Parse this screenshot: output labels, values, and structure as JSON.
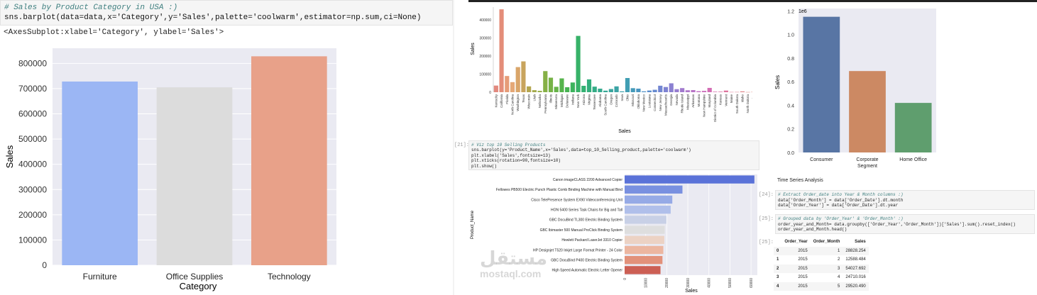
{
  "left_cell": {
    "comment": "# Sales by Product Category in USA :)",
    "code": "sns.barplot(data=data,x='Category',y='Sales',palette='coolwarm',estimator=np.sum,ci=None)",
    "output": "<AxesSubplot:xlabel='Category', ylabel='Sales'>"
  },
  "chart_data": [
    {
      "id": "category",
      "type": "bar",
      "categories": [
        "Furniture",
        "Office Supplies",
        "Technology"
      ],
      "values": [
        728000,
        705000,
        828000
      ],
      "colors": [
        "#9bb6f4",
        "#dcdcdc",
        "#e8a189"
      ],
      "xlabel": "Category",
      "ylabel": "Sales",
      "ylim": [
        0,
        860000
      ],
      "yticks": [
        0,
        100000,
        200000,
        300000,
        400000,
        500000,
        600000,
        700000,
        800000
      ],
      "ytick_labels": [
        "0",
        "100000",
        "200000",
        "300000",
        "400000",
        "500000",
        "600000",
        "700000",
        "800000"
      ],
      "grid": true
    },
    {
      "id": "state",
      "type": "bar",
      "categories": [
        "Kentucky",
        "California",
        "Florida",
        "North Carolina",
        "Washington",
        "Texas",
        "Wisconsin",
        "Utah",
        "Nebraska",
        "Pennsylvania",
        "Illinois",
        "Minnesota",
        "Michigan",
        "Delaware",
        "Indiana",
        "New York",
        "Arizona",
        "Virginia",
        "Tennessee",
        "Alabama",
        "South Carolina",
        "Oregon",
        "Colorado",
        "Iowa",
        "Ohio",
        "Missouri",
        "Oklahoma",
        "New Mexico",
        "Louisiana",
        "Connecticut",
        "New Jersey",
        "Massachusetts",
        "Georgia",
        "Nevada",
        "Rhode Island",
        "Mississippi",
        "Arkansas",
        "Montana",
        "New Hampshire",
        "Maryland",
        "District of Columbia",
        "Kansas",
        "Vermont",
        "Maine",
        "South Dakota",
        "Idaho",
        "North Dakota",
        "Wyoming",
        "West Virginia"
      ],
      "values": [
        36592,
        457688,
        89474,
        55603,
        138641,
        170188,
        32115,
        11220,
        7465,
        116512,
        80166,
        29863,
        76270,
        27451,
        53555,
        310876,
        35282,
        70637,
        30662,
        19511,
        8482,
        17431,
        32108,
        4580,
        78258,
        22205,
        19683,
        4784,
        9217,
        13384,
        35764,
        28634,
        49096,
        16729,
        22628,
        10771,
        11678,
        5589,
        7293,
        23706,
        2865,
        2914,
        8929,
        1271,
        1316,
        4382,
        920,
        1603,
        1210
      ],
      "xlabel": "Sales",
      "ylabel": "Sales",
      "ylim": [
        0,
        470000
      ],
      "yticks": [
        0,
        100000,
        200000,
        300000,
        400000
      ],
      "ytick_labels": [
        "0",
        "100000",
        "200000",
        "300000",
        "400000"
      ],
      "grid": false
    },
    {
      "id": "segment",
      "type": "bar",
      "categories": [
        "Consumer",
        "Corporate Segment",
        "Home Office"
      ],
      "category_lines": [
        [
          "Consumer"
        ],
        [
          "Corporate",
          "Segment"
        ],
        [
          "Home Office"
        ]
      ],
      "values": [
        1.15,
        0.69,
        0.42
      ],
      "colors": [
        "#5875a4",
        "#cc8963",
        "#5f9e6e"
      ],
      "xlabel": "",
      "ylabel": "Sales",
      "scale_label": "1e6",
      "ylim": [
        0,
        1.22
      ],
      "yticks": [
        0,
        0.2,
        0.4,
        0.6,
        0.8,
        1.0,
        1.2
      ],
      "ytick_labels": [
        "0.0",
        "0.2",
        "0.4",
        "0.6",
        "0.8",
        "1.0",
        "1.2"
      ],
      "grid": false
    },
    {
      "id": "top10",
      "type": "bar",
      "orientation": "horizontal",
      "categories": [
        "Canon imageCLASS 2200 Advanced Copier",
        "Fellowes PB500 Electric Punch Plastic Comb Binding Machine with Manual Bind",
        "Cisco TelePresence System EX90 Videoconferencing Unit",
        "HON 5400 Series Task Chairs for Big and Tall",
        "GBC DocuBind TL300 Electric Binding System",
        "GBC Ibimaster 500 Manual ProClick Binding System",
        "Hewlett Packard LaserJet 3310 Copier",
        "HP Designjet T520 Inkjet Large Format Printer - 24 Color",
        "GBC DocuBind P400 Electric Binding System",
        "High Speed Automatic Electric Letter Opener"
      ],
      "values": [
        61599.82,
        27453.38,
        22638.48,
        21870.58,
        19823.48,
        19024.5,
        18839.69,
        18374.9,
        17965.07,
        17030.31
      ],
      "colors": [
        "#5a72d8",
        "#7990e0",
        "#96aae6",
        "#b0bfea",
        "#c8d0e6",
        "#dedede",
        "#ecd2c4",
        "#ecb6a0",
        "#e2917a",
        "#cc5f54"
      ],
      "xlabel": "Sales",
      "ylabel": "Product_Name",
      "xlim": [
        0,
        63000
      ],
      "xticks": [
        0,
        10000,
        20000,
        30000,
        40000,
        50000,
        60000
      ],
      "xtick_labels": [
        "0",
        "10000",
        "20000",
        "30000",
        "40000",
        "50000",
        "60000"
      ],
      "grid": true
    }
  ],
  "viz_cell": {
    "prompt": "[21]:",
    "lines": [
      "# Viz top 10 Selling Products",
      "sns.barplot(y='Product_Name',x='Sales',data=top_10_Selling_product,palette='coolwarm')",
      "plt.xlabel('Sales',fontsize=13)",
      "plt.xticks(rotation=90,fontsize=10)",
      "plt.show()"
    ]
  },
  "time_series": {
    "heading": "Time Series Analysis",
    "cell_24": {
      "prompt": "[24]:",
      "lines": [
        "# Extract Order_date into Year & Month columns :)",
        "data['Order_Month'] = data['Order_Date'].dt.month",
        "data['Order_Year'] = data['Order_Date'].dt.year"
      ]
    },
    "cell_25": {
      "prompt": "[25]:",
      "lines": [
        "# Grouped data by 'Order_Year' & 'Order_Month' :)",
        "order_year_and_Month= data.groupby(['Order_Year','Order_Month'])['Sales'].sum().reset_index()",
        "order_year_and_Month.head()"
      ]
    },
    "out_prompt": "[25]:",
    "table": {
      "columns": [
        "",
        "Order_Year",
        "Order_Month",
        "Sales"
      ],
      "rows": [
        [
          "0",
          "2015",
          "1",
          "28828.254"
        ],
        [
          "1",
          "2015",
          "2",
          "12588.484"
        ],
        [
          "2",
          "2015",
          "3",
          "54027.692"
        ],
        [
          "3",
          "2015",
          "4",
          "24710.016"
        ],
        [
          "4",
          "2015",
          "5",
          "29520.490"
        ]
      ]
    }
  },
  "watermark": {
    "arabic": "مستقل",
    "latin": "mostaql.com"
  }
}
